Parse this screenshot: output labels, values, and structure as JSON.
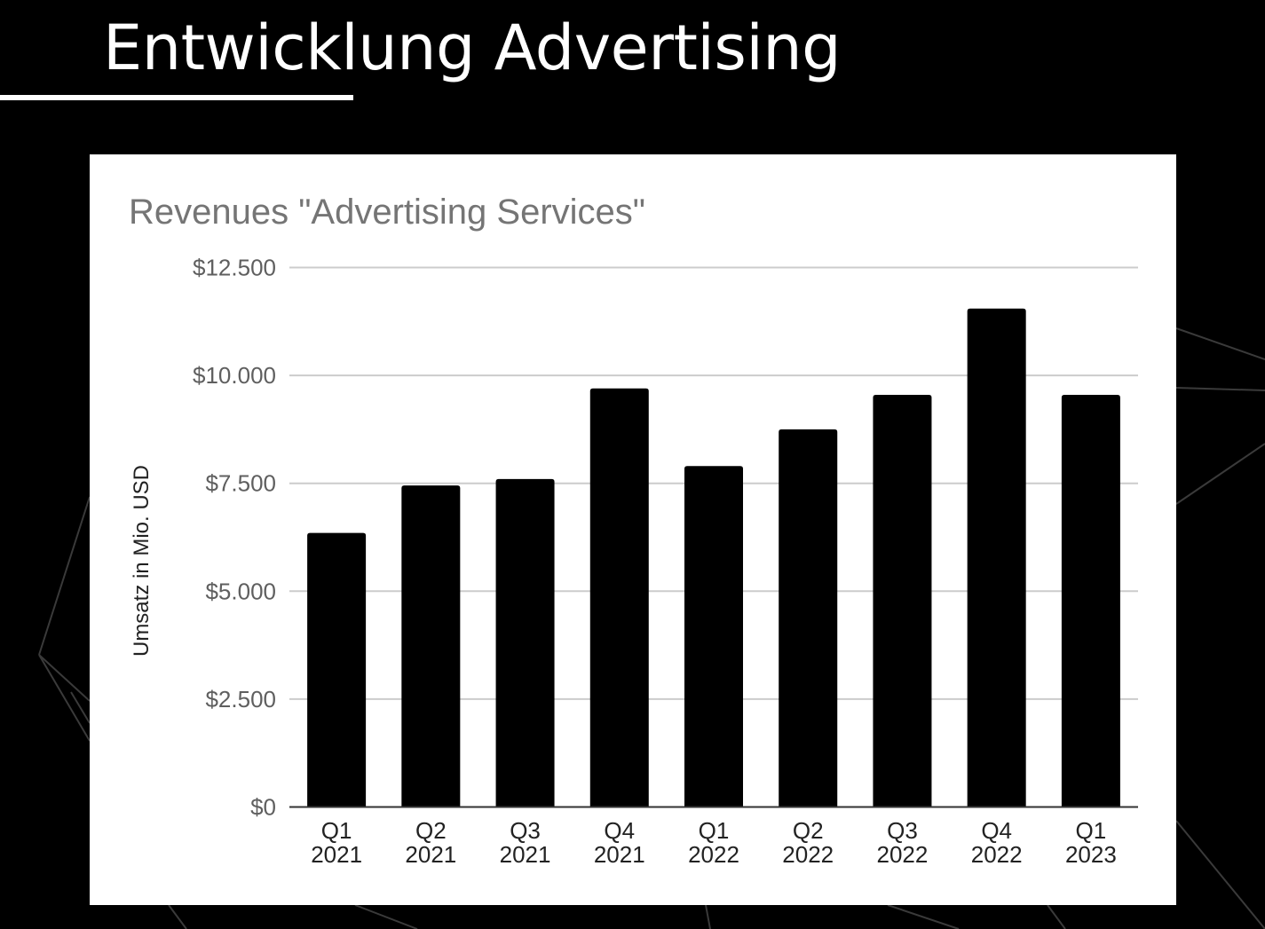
{
  "slide": {
    "title": "Entwicklung Advertising"
  },
  "chart_data": {
    "type": "bar",
    "title": "Revenues \"Advertising Services\"",
    "xlabel": "",
    "ylabel": "Umsatz in Mio. USD",
    "ylim": [
      0,
      12500
    ],
    "yticks": [
      0,
      2500,
      5000,
      7500,
      10000,
      12500
    ],
    "ytick_labels": [
      "$0",
      "$2.500",
      "$5.000",
      "$7.500",
      "$10.000",
      "$12.500"
    ],
    "categories": [
      [
        "Q1",
        "2021"
      ],
      [
        "Q2",
        "2021"
      ],
      [
        "Q3",
        "2021"
      ],
      [
        "Q4",
        "2021"
      ],
      [
        "Q1",
        "2022"
      ],
      [
        "Q2",
        "2022"
      ],
      [
        "Q3",
        "2022"
      ],
      [
        "Q4",
        "2022"
      ],
      [
        "Q1",
        "2023"
      ]
    ],
    "values": [
      6350,
      7450,
      7600,
      9700,
      7900,
      8750,
      9550,
      11550,
      9550
    ],
    "bar_color": "#000000",
    "grid": true,
    "legend": "none"
  }
}
